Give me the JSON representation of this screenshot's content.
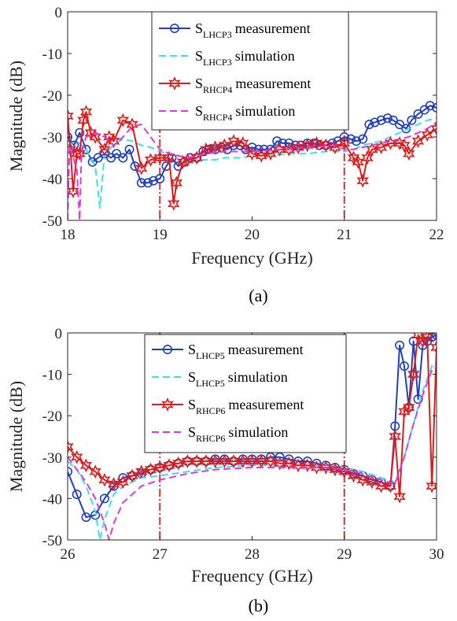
{
  "chart_data": [
    {
      "type": "line",
      "caption": "(a)",
      "xlabel": "Frequency (GHz)",
      "ylabel": "Magnitude (dB)",
      "xlim": [
        18,
        22
      ],
      "ylim": [
        -50,
        0
      ],
      "xticks": [
        "18",
        "19",
        "20",
        "21",
        "22"
      ],
      "yticks": [
        "0",
        "-10",
        "-20",
        "-30",
        "-40",
        "-50"
      ],
      "grid": false,
      "legend_position": "top-center",
      "vertical_markers": [
        19,
        21
      ],
      "series": [
        {
          "legend_main": "S",
          "legend_sub": "LHCP3",
          "legend_tail": "measurement",
          "style": "solid",
          "marker": "circle",
          "color": "#1f3fc4",
          "x": [
            18.0,
            18.07,
            18.13,
            18.2,
            18.27,
            18.33,
            18.4,
            18.47,
            18.53,
            18.6,
            18.67,
            18.73,
            18.8,
            18.87,
            18.93,
            19.0,
            19.07,
            19.13,
            19.2,
            19.27,
            19.33,
            19.4,
            19.47,
            19.53,
            19.6,
            19.67,
            19.73,
            19.8,
            19.87,
            19.93,
            20.0,
            20.07,
            20.13,
            20.2,
            20.27,
            20.33,
            20.4,
            20.47,
            20.53,
            20.6,
            20.67,
            20.73,
            20.8,
            20.87,
            20.93,
            21.0,
            21.07,
            21.13,
            21.2,
            21.27,
            21.33,
            21.4,
            21.47,
            21.53,
            21.6,
            21.67,
            21.73,
            21.8,
            21.87,
            21.93,
            22.0
          ],
          "y": [
            -30,
            -32,
            -29,
            -33,
            -36,
            -35,
            -34,
            -35,
            -34,
            -35,
            -33,
            -37,
            -41,
            -41,
            -40.5,
            -40,
            -37,
            -35,
            -37,
            -36,
            -35,
            -35,
            -33.5,
            -33,
            -33,
            -32.5,
            -33,
            -32,
            -32,
            -33,
            -32.5,
            -33,
            -33,
            -33,
            -31,
            -31.5,
            -31.5,
            -32,
            -32,
            -31.5,
            -31.5,
            -32,
            -32,
            -31.5,
            -31,
            -30,
            -30.5,
            -31,
            -30.5,
            -27,
            -26.5,
            -26,
            -25.5,
            -26,
            -27,
            -28,
            -26,
            -24.5,
            -23.5,
            -22.5,
            -23
          ]
        },
        {
          "legend_main": "S",
          "legend_sub": "LHCP3",
          "legend_tail": "simulation",
          "style": "dashed",
          "marker": "none",
          "color": "#33e6e6",
          "x": [
            18.0,
            18.1,
            18.2,
            18.3,
            18.35,
            18.4,
            18.5,
            18.6,
            18.7,
            18.8,
            18.9,
            19.0,
            19.1,
            19.2,
            19.3,
            19.4,
            19.5,
            19.6,
            19.7,
            19.8,
            19.9,
            20.0,
            20.2,
            20.4,
            20.6,
            20.8,
            21.0,
            21.1,
            21.2,
            21.3,
            21.4,
            21.5,
            21.6,
            21.7,
            21.8,
            21.9,
            22.0
          ],
          "y": [
            -32,
            -31,
            -33,
            -37,
            -47,
            -34,
            -32,
            -30.5,
            -31,
            -32,
            -32.5,
            -33.5,
            -34,
            -34.5,
            -35,
            -35.5,
            -35.5,
            -35.5,
            -35,
            -35,
            -35,
            -34.5,
            -34.5,
            -34,
            -34,
            -33.5,
            -33.5,
            -33,
            -32,
            -31.5,
            -31,
            -30,
            -29,
            -28,
            -27,
            -26,
            -25.5
          ]
        },
        {
          "legend_main": "S",
          "legend_sub": "RHCP4",
          "legend_tail": "measurement",
          "style": "solid",
          "marker": "hexagram",
          "color": "#e01b1b",
          "x": [
            18.0,
            18.03,
            18.06,
            18.1,
            18.13,
            18.17,
            18.2,
            18.25,
            18.3,
            18.4,
            18.45,
            18.5,
            18.6,
            18.7,
            18.8,
            18.9,
            19.0,
            19.1,
            19.15,
            19.18,
            19.25,
            19.3,
            19.4,
            19.5,
            19.6,
            19.7,
            19.8,
            19.9,
            20.0,
            20.1,
            20.2,
            20.3,
            20.4,
            20.5,
            20.6,
            20.7,
            20.8,
            20.9,
            21.0,
            21.1,
            21.15,
            21.2,
            21.25,
            21.3,
            21.4,
            21.5,
            21.6,
            21.65,
            21.7,
            21.8,
            21.9,
            22.0
          ],
          "y": [
            -25,
            -33,
            -43,
            -34,
            -34,
            -26,
            -24,
            -29,
            -30,
            -33,
            -30,
            -31,
            -26,
            -27,
            -37.5,
            -35.5,
            -35,
            -35,
            -46,
            -41,
            -36,
            -35.5,
            -35,
            -33,
            -32.5,
            -32,
            -31,
            -31.5,
            -34,
            -34.5,
            -34,
            -33,
            -33,
            -32.5,
            -32,
            -31.5,
            -32,
            -32.5,
            -31.5,
            -35,
            -36,
            -40.5,
            -35,
            -33,
            -32.5,
            -31.5,
            -31.5,
            -32,
            -34,
            -31,
            -29.5,
            -28
          ]
        },
        {
          "legend_main": "S",
          "legend_sub": "RHCP4",
          "legend_tail": "simulation",
          "style": "dashed",
          "marker": "none",
          "color": "#e633e6",
          "x": [
            18.0,
            18.02,
            18.05,
            18.1,
            18.13,
            18.15,
            18.2,
            18.3,
            18.4,
            18.5,
            18.6,
            18.7,
            18.8,
            18.9,
            19.0,
            19.1,
            19.2,
            19.3,
            19.5,
            19.7,
            20.0,
            20.3,
            20.6,
            20.9,
            21.0,
            21.1,
            21.2,
            21.3,
            21.4,
            21.5,
            21.6,
            21.7,
            21.8,
            21.9,
            22.0
          ],
          "y": [
            -50,
            -32,
            -34,
            -38,
            -50,
            -34,
            -30,
            -29,
            -30,
            -32,
            -30,
            -27.5,
            -27,
            -30,
            -33,
            -34,
            -34.5,
            -35,
            -34,
            -33.5,
            -33.5,
            -33,
            -32.5,
            -32,
            -33,
            -33,
            -32.5,
            -32,
            -31.5,
            -31,
            -30.5,
            -30,
            -29,
            -28,
            -26.5
          ]
        }
      ]
    },
    {
      "type": "line",
      "caption": "(b)",
      "xlabel": "Frequency (GHz)",
      "ylabel": "Magnitude (dB)",
      "xlim": [
        26,
        30
      ],
      "ylim": [
        -50,
        0
      ],
      "xticks": [
        "26",
        "27",
        "28",
        "29",
        "30"
      ],
      "yticks": [
        "0",
        "-10",
        "-20",
        "-30",
        "-40",
        "-50"
      ],
      "grid": false,
      "legend_position": "top-left",
      "vertical_markers": [
        27,
        29
      ],
      "series": [
        {
          "legend_main": "S",
          "legend_sub": "LHCP5",
          "legend_tail": "measurement",
          "style": "solid",
          "marker": "circle",
          "color": "#1f3fc4",
          "x": [
            26.0,
            26.1,
            26.2,
            26.3,
            26.4,
            26.5,
            26.6,
            26.7,
            26.8,
            26.9,
            27.0,
            27.1,
            27.2,
            27.3,
            27.4,
            27.5,
            27.6,
            27.7,
            27.8,
            27.9,
            28.0,
            28.1,
            28.2,
            28.3,
            28.4,
            28.5,
            28.6,
            28.7,
            28.8,
            28.9,
            29.0,
            29.1,
            29.2,
            29.3,
            29.4,
            29.5,
            29.55,
            29.6,
            29.65,
            29.7,
            29.75,
            29.8,
            29.85,
            29.9,
            29.95,
            30.0
          ],
          "y": [
            -33.5,
            -39,
            -44.5,
            -44,
            -40,
            -37,
            -35,
            -34.5,
            -34,
            -33,
            -32.5,
            -32,
            -31.5,
            -31,
            -31,
            -31,
            -30.5,
            -30.5,
            -31,
            -30.5,
            -30.5,
            -30.5,
            -30,
            -30,
            -30.5,
            -31,
            -31,
            -31.5,
            -32,
            -32.5,
            -33,
            -34,
            -34.5,
            -35.5,
            -36,
            -37,
            -22.5,
            -3,
            -8,
            -18,
            -2,
            -16,
            -3,
            -2,
            -1,
            -0.5
          ]
        },
        {
          "legend_main": "S",
          "legend_sub": "LHCP5",
          "legend_tail": "simulation",
          "style": "dashed",
          "marker": "none",
          "color": "#33e6e6",
          "x": [
            26.0,
            26.1,
            26.2,
            26.3,
            26.35,
            26.4,
            26.5,
            26.6,
            26.8,
            27.0,
            27.3,
            27.6,
            28.0,
            28.4,
            28.8,
            29.0,
            29.2,
            29.4,
            29.55,
            29.65,
            29.75,
            29.85,
            29.95,
            30.0
          ],
          "y": [
            -31,
            -33,
            -37,
            -43,
            -50,
            -45,
            -39,
            -37,
            -35,
            -34.5,
            -33.5,
            -32.5,
            -32,
            -32,
            -32,
            -32.5,
            -33.5,
            -35,
            -36,
            -30,
            -22,
            -14,
            -8,
            -7
          ]
        },
        {
          "legend_main": "S",
          "legend_sub": "RHCP6",
          "legend_tail": "measurement",
          "style": "solid",
          "marker": "hexagram",
          "color": "#e01b1b",
          "x": [
            26.0,
            26.1,
            26.2,
            26.3,
            26.4,
            26.5,
            26.6,
            26.7,
            26.8,
            26.9,
            27.0,
            27.1,
            27.2,
            27.3,
            27.4,
            27.5,
            27.6,
            27.7,
            27.8,
            27.9,
            28.0,
            28.1,
            28.2,
            28.3,
            28.4,
            28.5,
            28.6,
            28.7,
            28.8,
            28.9,
            29.0,
            29.1,
            29.2,
            29.3,
            29.4,
            29.5,
            29.55,
            29.6,
            29.65,
            29.7,
            29.75,
            29.8,
            29.85,
            29.9,
            29.95,
            30.0
          ],
          "y": [
            -27.5,
            -30,
            -32,
            -33.5,
            -35.5,
            -36.5,
            -36,
            -34.5,
            -33.5,
            -33,
            -32.5,
            -32,
            -31.5,
            -31,
            -31,
            -31,
            -31,
            -31,
            -31,
            -31,
            -31,
            -31,
            -31,
            -31.5,
            -31.5,
            -32,
            -32,
            -32.5,
            -32.5,
            -33,
            -33.5,
            -34.5,
            -35.5,
            -36,
            -37,
            -37,
            -25,
            -39.5,
            -19,
            -18,
            -10,
            -0.5,
            -2,
            -1,
            -37,
            -3.5
          ]
        },
        {
          "legend_main": "S",
          "legend_sub": "RHCP6",
          "legend_tail": "simulation",
          "style": "dashed",
          "marker": "none",
          "color": "#e633e6",
          "x": [
            26.0,
            26.1,
            26.2,
            26.3,
            26.4,
            26.45,
            26.5,
            26.6,
            26.8,
            27.0,
            27.3,
            27.6,
            28.0,
            28.4,
            28.8,
            29.0,
            29.2,
            29.4,
            29.55,
            29.65,
            29.75,
            29.85,
            29.95,
            30.0
          ],
          "y": [
            -30,
            -33,
            -36,
            -40,
            -46,
            -50,
            -46,
            -41,
            -37,
            -35.5,
            -34,
            -33,
            -32.5,
            -32.5,
            -32.5,
            -33,
            -34,
            -35.5,
            -36.5,
            -30,
            -22,
            -15,
            -9,
            -8
          ]
        }
      ]
    }
  ]
}
